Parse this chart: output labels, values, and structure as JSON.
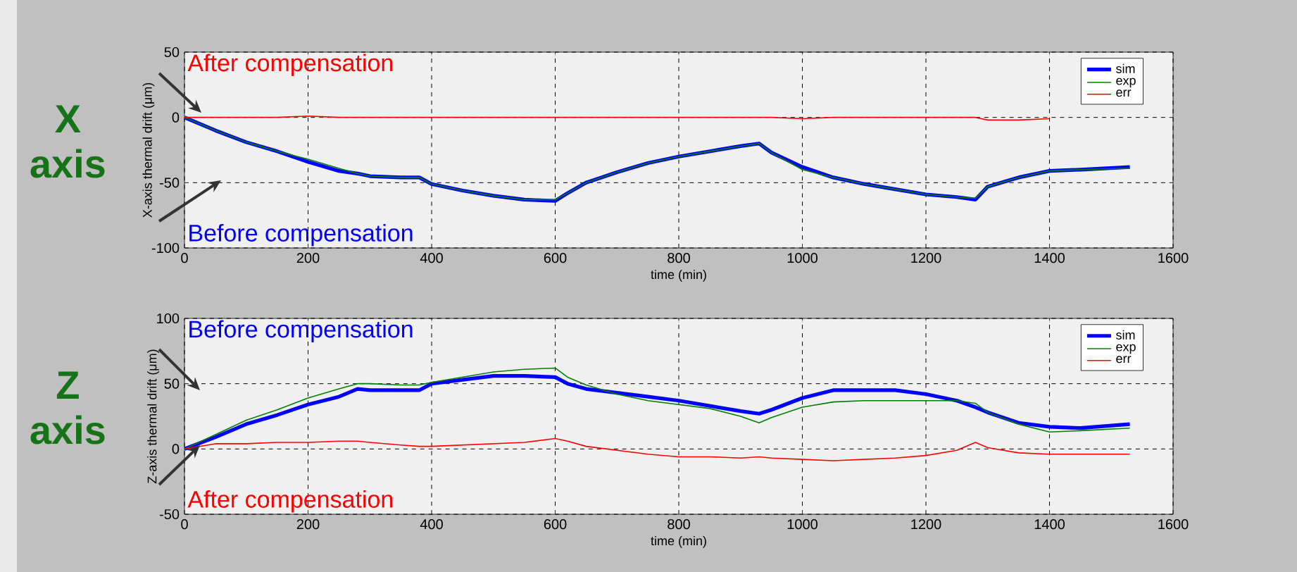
{
  "chart_data": [
    {
      "type": "line",
      "title": "X axis",
      "xlabel": "time (min)",
      "ylabel": "X-axis thermal drift (μm)",
      "xlim": [
        0,
        1600
      ],
      "ylim": [
        -100,
        50
      ],
      "xticks": [
        0,
        200,
        400,
        600,
        800,
        1000,
        1200,
        1400,
        1600
      ],
      "yticks": [
        -100,
        -50,
        0,
        50
      ],
      "grid": true,
      "legend": "top right",
      "annotations": [
        "After compensation",
        "Before compensation"
      ],
      "x": [
        0,
        50,
        100,
        150,
        200,
        250,
        280,
        300,
        350,
        380,
        400,
        450,
        500,
        550,
        600,
        620,
        650,
        700,
        750,
        800,
        850,
        900,
        930,
        950,
        1000,
        1050,
        1100,
        1150,
        1200,
        1250,
        1280,
        1300,
        1350,
        1400,
        1450,
        1530
      ],
      "series": [
        {
          "name": "sim",
          "color": "#0000ff",
          "values": [
            0,
            -10,
            -19,
            -26,
            -34,
            -41,
            -43,
            -45,
            -46,
            -46,
            -51,
            -56,
            -60,
            -63,
            -64,
            -58,
            -50,
            -42,
            -35,
            -30,
            -26,
            -22,
            -20,
            -27,
            -38,
            -46,
            -51,
            -55,
            -59,
            -61,
            -63,
            -53,
            -46,
            -41,
            -40,
            -38
          ]
        },
        {
          "name": "exp",
          "color": "#008000",
          "values": [
            0,
            -10,
            -19,
            -26,
            -32,
            -39,
            -43,
            -45,
            -46,
            -46,
            -51,
            -56,
            -60,
            -63,
            -63,
            -58,
            -50,
            -42,
            -35,
            -30,
            -26,
            -22,
            -20,
            -27,
            -40,
            -46,
            -51,
            -55,
            -59,
            -61,
            -62,
            -53,
            -46,
            -41,
            -40,
            -39
          ]
        },
        {
          "name": "err",
          "color": "#ff0000",
          "values": [
            0,
            0,
            0,
            0,
            1,
            0,
            0,
            0,
            0,
            0,
            0,
            0,
            0,
            0,
            0,
            0,
            0,
            0,
            0,
            0,
            0,
            0,
            0,
            0,
            -1,
            0,
            0,
            0,
            0,
            0,
            0,
            -2,
            -2,
            -1,
            null,
            null
          ]
        }
      ]
    },
    {
      "type": "line",
      "title": "Z axis",
      "xlabel": "time (min)",
      "ylabel": "Z-axis thermal drift (μm)",
      "xlim": [
        0,
        1600
      ],
      "ylim": [
        -50,
        100
      ],
      "xticks": [
        0,
        200,
        400,
        600,
        800,
        1000,
        1200,
        1400,
        1600
      ],
      "yticks": [
        -50,
        0,
        50,
        100
      ],
      "grid": true,
      "legend": "top right",
      "annotations": [
        "Before compensation",
        "After compensation"
      ],
      "x": [
        0,
        50,
        100,
        150,
        200,
        250,
        280,
        300,
        350,
        380,
        400,
        450,
        500,
        550,
        600,
        620,
        650,
        700,
        750,
        800,
        850,
        900,
        930,
        950,
        1000,
        1050,
        1100,
        1150,
        1200,
        1250,
        1280,
        1300,
        1350,
        1400,
        1450,
        1530
      ],
      "series": [
        {
          "name": "sim",
          "color": "#0000ff",
          "values": [
            0,
            9,
            19,
            26,
            34,
            40,
            46,
            45,
            45,
            45,
            50,
            53,
            56,
            56,
            55,
            50,
            46,
            43,
            40,
            37,
            33,
            29,
            27,
            30,
            39,
            45,
            45,
            45,
            42,
            37,
            32,
            28,
            20,
            17,
            16,
            19
          ]
        },
        {
          "name": "exp",
          "color": "#008000",
          "values": [
            0,
            11,
            22,
            30,
            39,
            46,
            50,
            50,
            49,
            49,
            51,
            55,
            59,
            61,
            62,
            55,
            49,
            42,
            37,
            34,
            31,
            25,
            20,
            24,
            32,
            36,
            37,
            37,
            37,
            37,
            35,
            28,
            19,
            13,
            14,
            16
          ]
        },
        {
          "name": "err",
          "color": "#ff0000",
          "values": [
            0,
            4,
            4,
            5,
            5,
            6,
            6,
            5,
            3,
            2,
            2,
            3,
            4,
            5,
            8,
            6,
            2,
            -1,
            -4,
            -6,
            -6,
            -7,
            -6,
            -7,
            -8,
            -9,
            -8,
            -7,
            -5,
            -1,
            5,
            1,
            -3,
            -4,
            -4,
            -4
          ]
        }
      ]
    }
  ]
}
